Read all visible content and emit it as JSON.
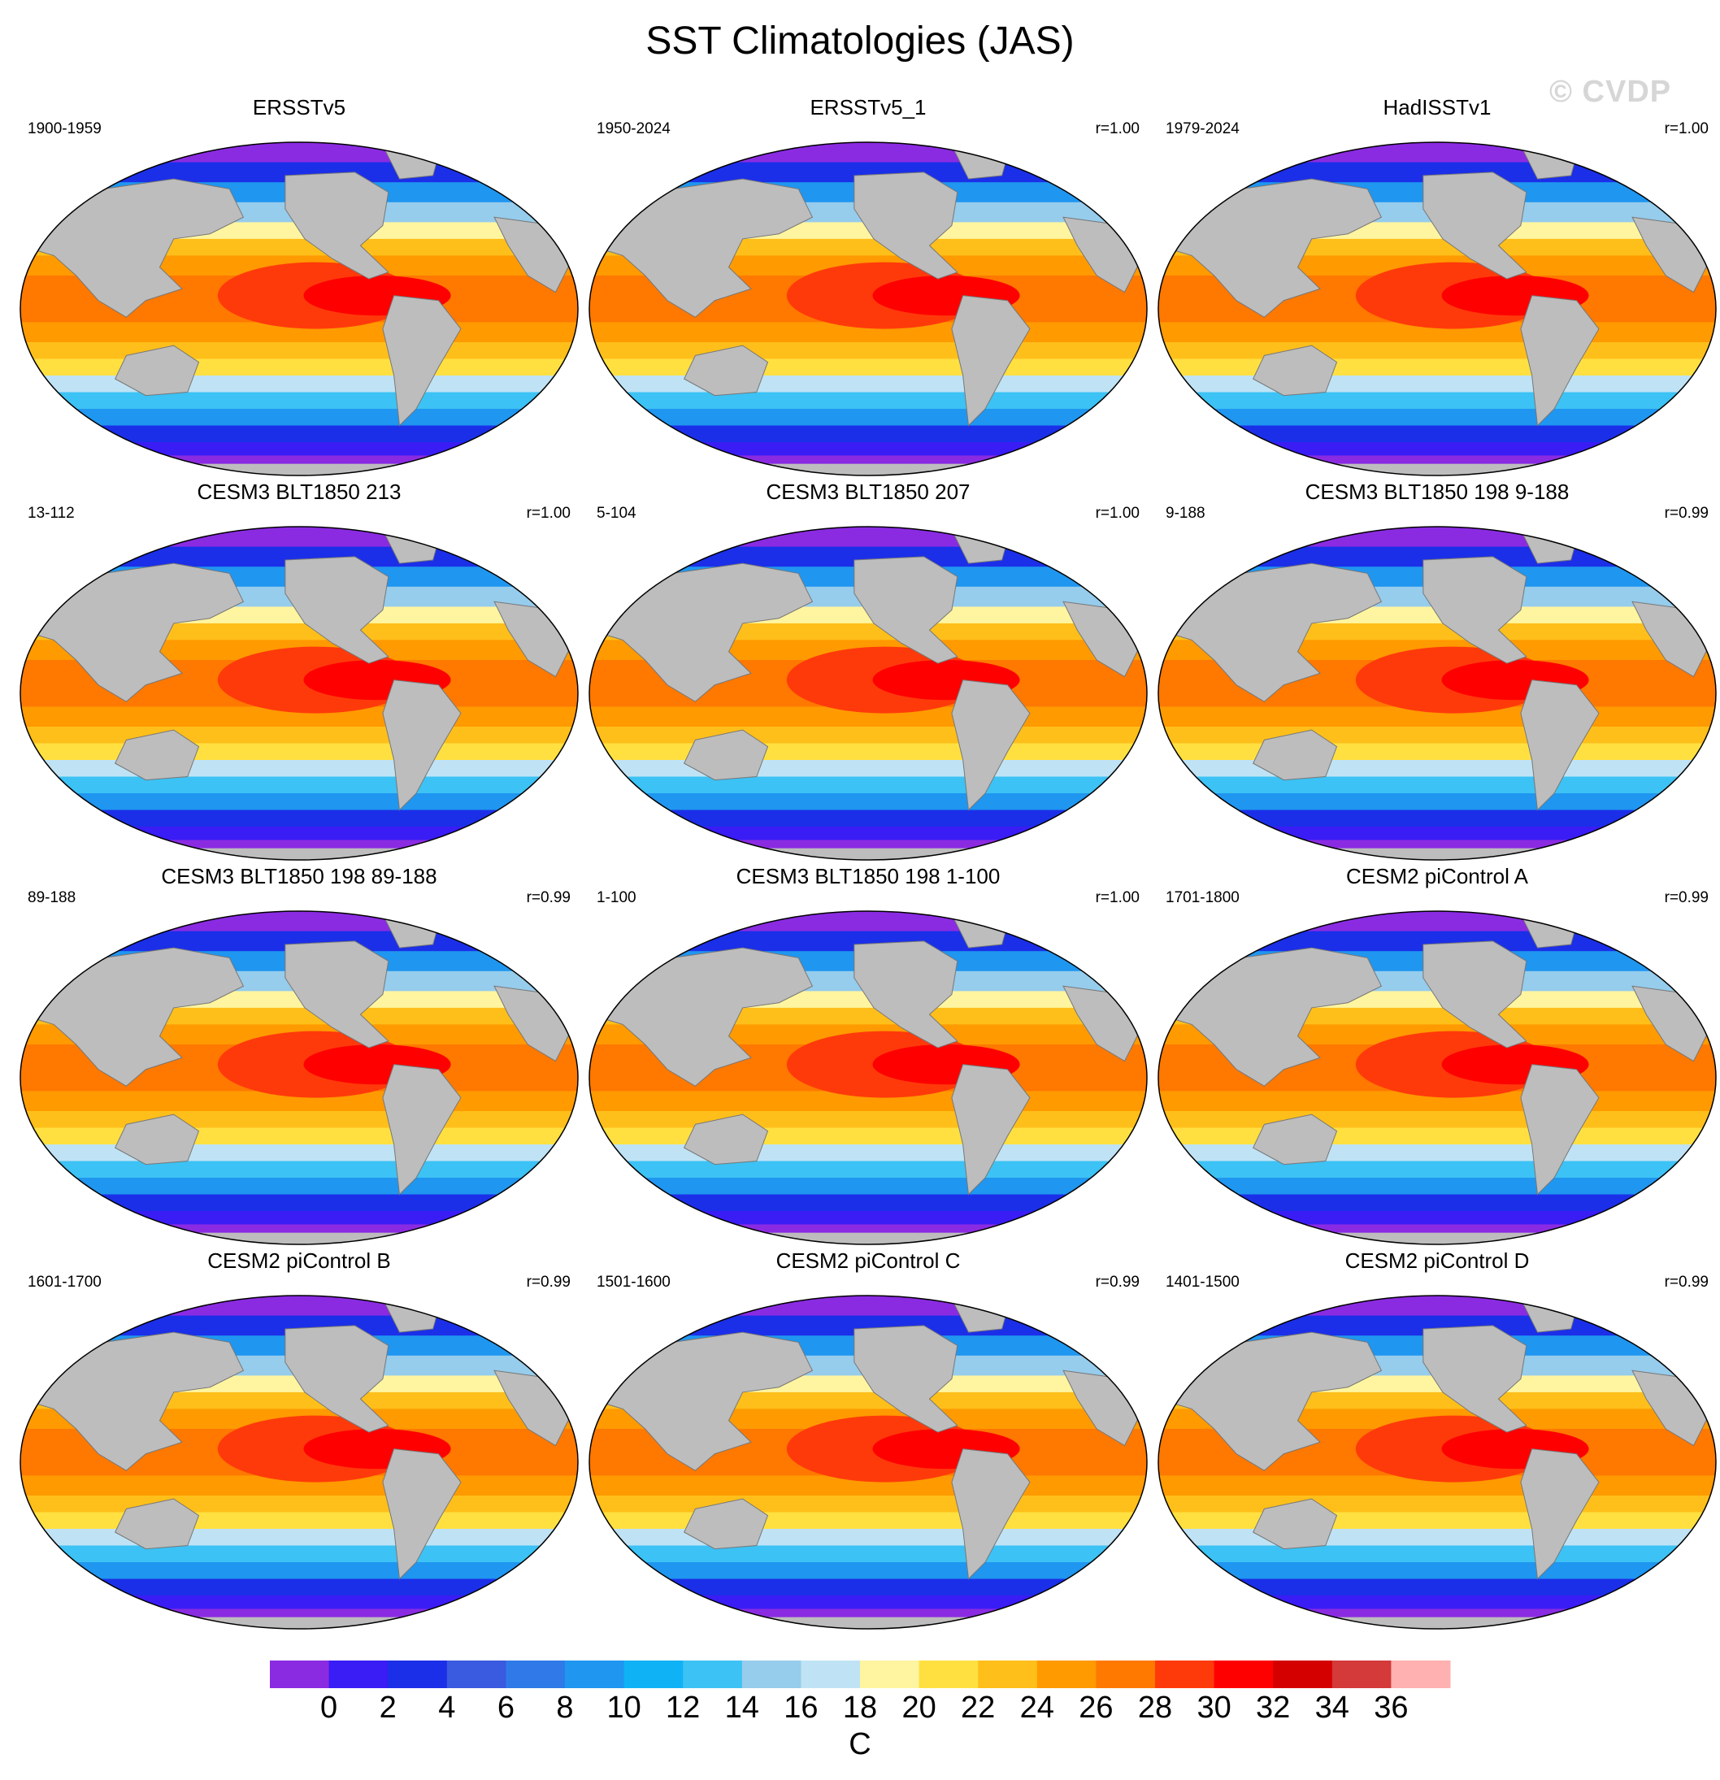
{
  "title": "SST Climatologies (JAS)",
  "watermark": "© CVDP",
  "chart_data": {
    "type": "heatmap",
    "description_units": "C",
    "colorbar": {
      "units": "C",
      "levels": [
        0,
        2,
        4,
        6,
        8,
        10,
        12,
        14,
        16,
        18,
        20,
        22,
        24,
        26,
        28,
        30,
        32,
        34,
        36
      ],
      "tick_labels": [
        "0",
        "2",
        "4",
        "6",
        "8",
        "10",
        "12",
        "14",
        "16",
        "18",
        "20",
        "22",
        "24",
        "26",
        "28",
        "30",
        "32",
        "34",
        "36"
      ],
      "colors": [
        "#8a2be2",
        "#3a1cf5",
        "#1b2fe8",
        "#3a5ae0",
        "#2f7ae8",
        "#1f96f0",
        "#10b2f6",
        "#3cc2f4",
        "#96ccec",
        "#bfe3f5",
        "#fff5a0",
        "#ffe040",
        "#ffbf1a",
        "#ff9a00",
        "#ff7800",
        "#ff3a0a",
        "#ff0000",
        "#d40000",
        "#d43a3a",
        "#ffb0b0"
      ]
    },
    "panels": [
      {
        "name": "ERSSTv5",
        "left": "1900-1959",
        "right": ""
      },
      {
        "name": "ERSSTv5_1",
        "left": "1950-2024",
        "right": "r=1.00"
      },
      {
        "name": "HadISSTv1",
        "left": "1979-2024",
        "right": "r=1.00"
      },
      {
        "name": "CESM3 BLT1850 213",
        "left": "13-112",
        "right": "r=1.00"
      },
      {
        "name": "CESM3 BLT1850 207",
        "left": "5-104",
        "right": "r=1.00"
      },
      {
        "name": "CESM3 BLT1850 198 9-188",
        "left": "9-188",
        "right": "r=0.99"
      },
      {
        "name": "CESM3 BLT1850 198 89-188",
        "left": "89-188",
        "right": "r=0.99"
      },
      {
        "name": "CESM3 BLT1850 198 1-100",
        "left": "1-100",
        "right": "r=1.00"
      },
      {
        "name": "CESM2 piControl A",
        "left": "1701-1800",
        "right": "r=0.99"
      },
      {
        "name": "CESM2 piControl B",
        "left": "1601-1700",
        "right": "r=0.99"
      },
      {
        "name": "CESM2 piControl C",
        "left": "1501-1600",
        "right": "r=0.99"
      },
      {
        "name": "CESM2 piControl D",
        "left": "1401-1500",
        "right": "r=0.99"
      }
    ]
  }
}
